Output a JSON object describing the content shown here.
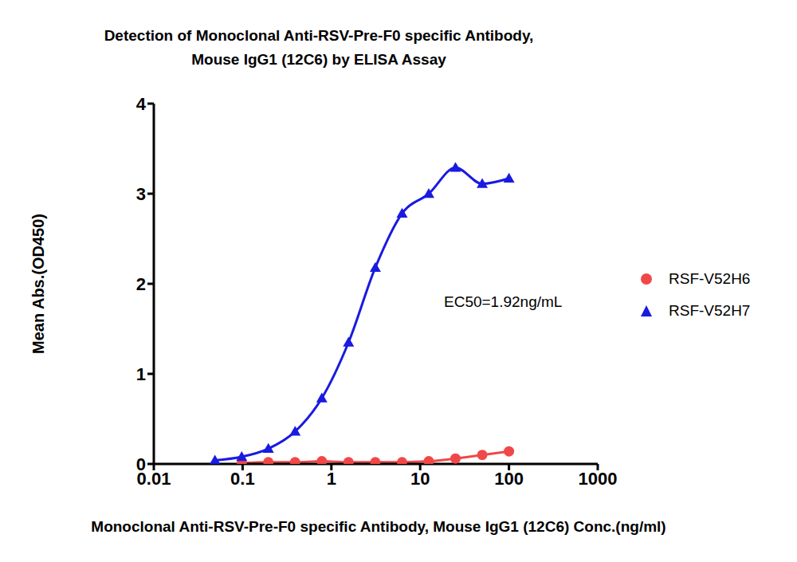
{
  "chart_data": {
    "type": "line",
    "title": "Detection of Monoclonal Anti-RSV-Pre-F0 specific Antibody,\nMouse IgG1 (12C6) by ELISA Assay",
    "x_label": "Monoclonal Anti-RSV-Pre-F0 specific Antibody, Mouse IgG1 (12C6) Conc.(ng/ml)",
    "y_label": "Mean Abs.(OD450)",
    "annotation": "EC50=1.92ng/mL",
    "log": "x",
    "xlim": [
      0.01,
      1000
    ],
    "xticks": [
      0.01,
      0.1,
      1,
      10,
      100,
      1000
    ],
    "ylim": [
      0,
      4
    ],
    "yticks": [
      0,
      1,
      2,
      3,
      4
    ],
    "grid": false,
    "legend": "right",
    "series": [
      {
        "name": "RSF-V52H6",
        "color": "#f04848",
        "marker": "circle",
        "line_style": "solid",
        "x": [
          0.0977,
          0.195,
          0.39,
          0.78,
          1.56,
          3.125,
          6.25,
          12.5,
          25,
          50,
          100
        ],
        "values": [
          0.01,
          0.02,
          0.02,
          0.03,
          0.02,
          0.02,
          0.02,
          0.03,
          0.06,
          0.1,
          0.14
        ]
      },
      {
        "name": "RSF-V52H7",
        "color": "#1a1ae0",
        "marker": "triangle",
        "line_style": "solid",
        "x": [
          0.0488,
          0.0977,
          0.195,
          0.39,
          0.78,
          1.56,
          3.125,
          6.25,
          12.5,
          25,
          50,
          100
        ],
        "values": [
          0.04,
          0.08,
          0.17,
          0.36,
          0.73,
          1.35,
          2.18,
          2.78,
          3.0,
          3.29,
          3.11,
          3.17
        ]
      }
    ]
  }
}
